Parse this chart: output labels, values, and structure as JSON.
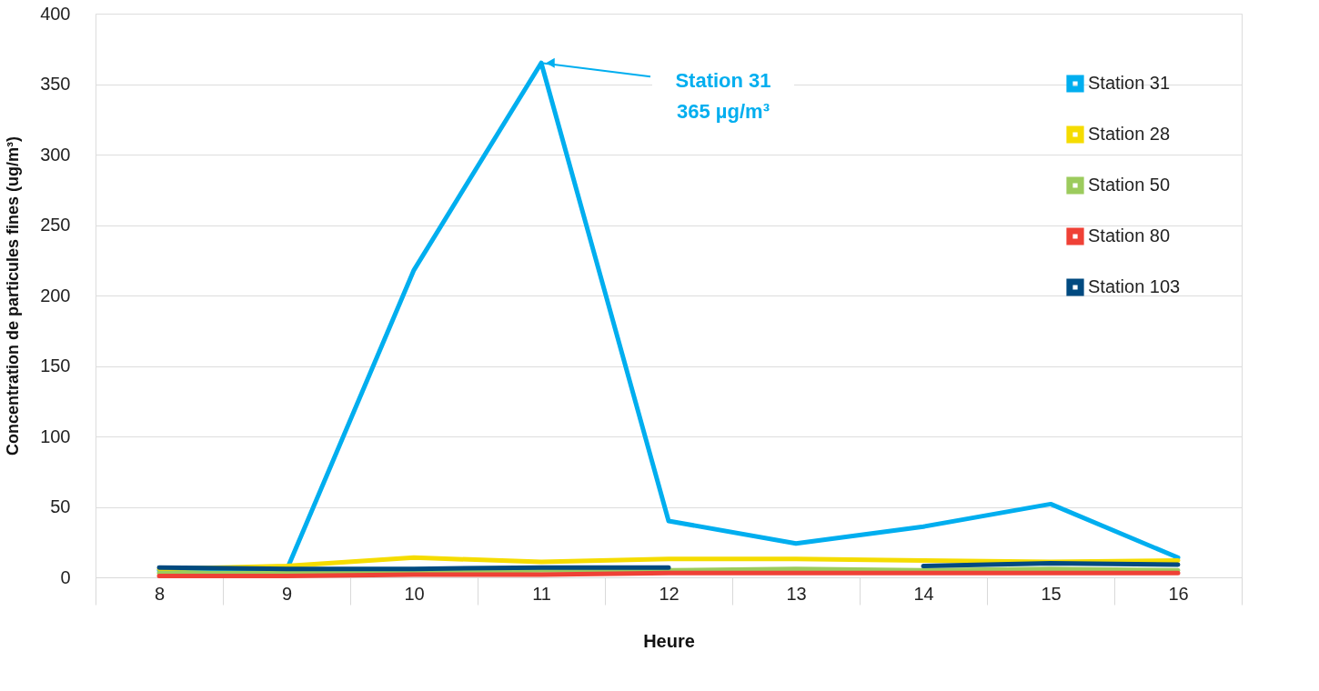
{
  "chart_data": {
    "type": "line",
    "xlabel": "Heure",
    "ylabel": "Concentration de particules fines (ug/m³)",
    "categories": [
      "8",
      "9",
      "10",
      "11",
      "12",
      "13",
      "14",
      "15",
      "16"
    ],
    "series": [
      {
        "name": "Station 31",
        "color": "#00aeef",
        "values": [
          5,
          5,
          218,
          365,
          40,
          24,
          36,
          52,
          14
        ]
      },
      {
        "name": "Station 28",
        "color": "#f5dc00",
        "values": [
          6,
          8,
          14,
          11,
          13,
          13,
          12,
          11,
          12
        ]
      },
      {
        "name": "Station 50",
        "color": "#9ccb5d",
        "values": [
          3,
          3,
          4,
          5,
          5,
          6,
          5,
          6,
          5
        ]
      },
      {
        "name": "Station 80",
        "color": "#ef4136",
        "values": [
          1,
          1,
          2,
          2,
          3,
          3,
          3,
          3,
          3
        ]
      },
      {
        "name": "Station 103",
        "color": "#004a80",
        "values": [
          7,
          6,
          6,
          7,
          7,
          null,
          8,
          10,
          9
        ]
      }
    ],
    "ylim": [
      0,
      400
    ],
    "yticks": [
      0,
      50,
      100,
      150,
      200,
      250,
      300,
      350,
      400
    ],
    "grid": "y",
    "legend": "top right",
    "marker": "none",
    "line_style": "solid",
    "annotations": [
      {
        "text": "Station 31\n365 µg/m³",
        "x": "11",
        "y": 365
      }
    ]
  }
}
